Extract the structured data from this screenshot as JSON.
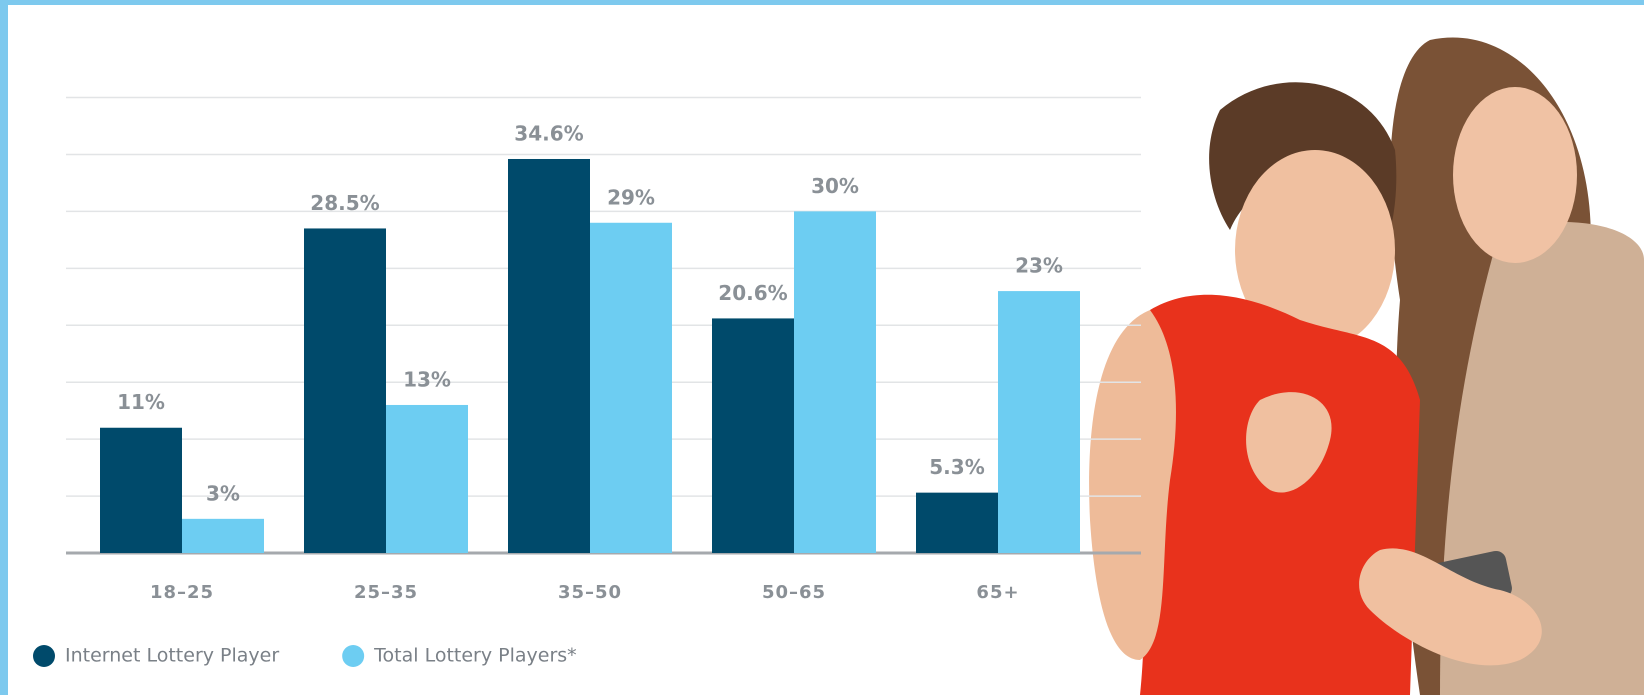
{
  "chart_data": {
    "type": "bar",
    "categories": [
      "18–25",
      "25–35",
      "35–50",
      "50–65",
      "65+"
    ],
    "series": [
      {
        "name": "Internet Lottery Player",
        "color": "#004a6b",
        "values": [
          11,
          28.5,
          34.6,
          20.6,
          5.3
        ],
        "value_labels": [
          "11%",
          "28.5%",
          "34.6%",
          "20.6%",
          "5.3%"
        ]
      },
      {
        "name": "Total Lottery Players*",
        "color": "#6dcdf2",
        "values": [
          3,
          13,
          29,
          30,
          23
        ],
        "value_labels": [
          "3%",
          "13%",
          "29%",
          "30%",
          "23%"
        ]
      }
    ],
    "ylim": [
      0,
      40
    ],
    "yticks": [
      0,
      5,
      10,
      15,
      20,
      25,
      30,
      35,
      40
    ],
    "grid": true,
    "legend": "bottom-left"
  }
}
